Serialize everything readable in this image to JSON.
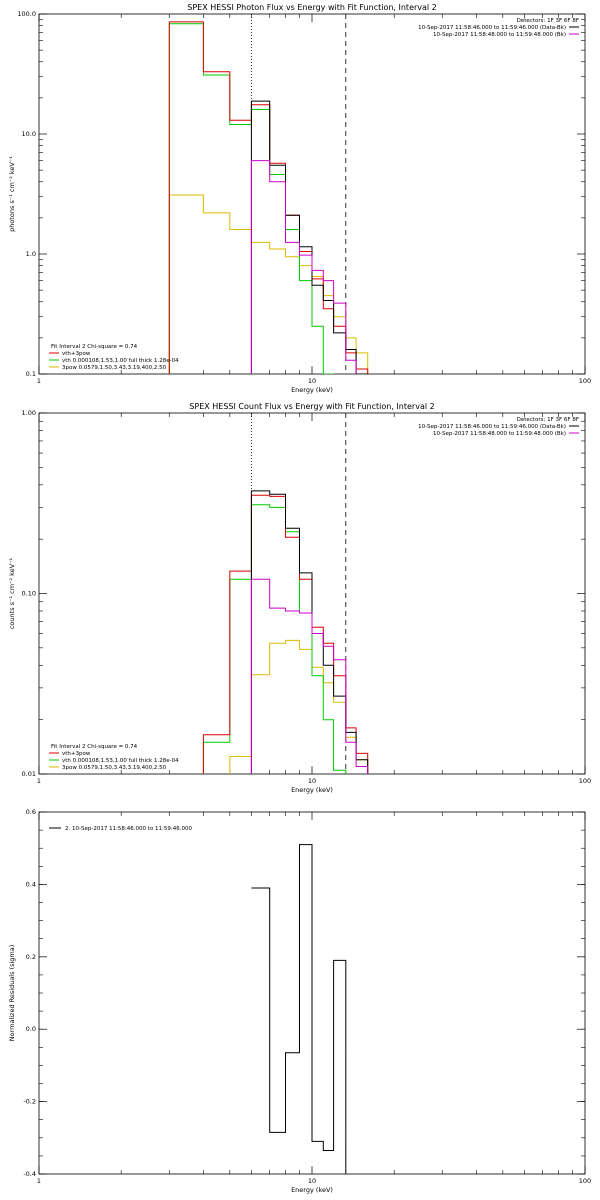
{
  "colors": {
    "vth_3pow": "#dd0000",
    "vth": "#00cc00",
    "three_pow": "#ddbb00",
    "data": "#000000",
    "bk": "#cc00cc"
  },
  "chart_data": [
    {
      "type": "line",
      "title": "SPEX HESSI Photon Flux vs Energy with Fit Function, Interval 2",
      "xlabel": "Energy (keV)",
      "ylabel": "photons s⁻¹ cm⁻² keV⁻¹",
      "xscale": "log",
      "yscale": "log",
      "xlim": [
        1,
        100
      ],
      "ylim": [
        0.1,
        100
      ],
      "xticks": [
        {
          "v": 1,
          "label": "1"
        },
        {
          "v": 10,
          "label": "10"
        },
        {
          "v": 100,
          "label": "100"
        }
      ],
      "yticks": [
        {
          "v": 0.1,
          "label": "0.1"
        },
        {
          "v": 1,
          "label": "1.0"
        },
        {
          "v": 10,
          "label": "10.0"
        },
        {
          "v": 100,
          "label": "100.0"
        }
      ],
      "vlines": [
        {
          "x": 6.0,
          "style": "dotted"
        },
        {
          "x": 13.3,
          "style": "dashed"
        }
      ],
      "legend_top": [
        "Detectors: 1F 3F 6F 8F",
        "10-Sep-2017 11:58:46.000 to 11:59:46.000 (Data-Bk)",
        "10-Sep-2017 11:58:48.000 to 11:59:48.000 (Bk)"
      ],
      "legend_top_keys": [
        "",
        "data",
        "bk"
      ],
      "legend_bottom": [
        "Fit Interval 2   Chi-square = 0.74",
        "vth+3pow",
        "vth 0.000108,1.53,1.00  full thick 1.28e-04",
        "3pow 0.0579,1.50,3.43,3.19,400,2.50"
      ],
      "legend_bottom_keys": [
        "",
        "vth_3pow",
        "vth",
        "three_pow"
      ],
      "x_edges": [
        3.0,
        4.0,
        5.0,
        6.0,
        7.0,
        8.0,
        9.0,
        10.0,
        11.0,
        12.0,
        13.3,
        14.5,
        16.0
      ],
      "series": [
        {
          "key": "three_pow",
          "values": [
            3.1,
            2.2,
            1.6,
            1.25,
            1.1,
            0.95,
            0.8,
            0.65,
            0.45,
            0.3,
            0.2,
            0.15
          ]
        },
        {
          "key": "vth",
          "values": [
            83,
            31,
            12,
            16,
            4.6,
            1.6,
            0.6,
            0.25,
            0.1,
            null,
            null,
            null
          ]
        },
        {
          "key": "vth_3pow",
          "values": [
            86,
            33,
            13,
            17.5,
            5.7,
            2.1,
            1.05,
            0.62,
            0.35,
            0.25,
            0.15,
            0.11
          ]
        },
        {
          "key": "data",
          "values": [
            null,
            null,
            null,
            18.8,
            5.5,
            2.1,
            1.15,
            0.55,
            0.41,
            0.22,
            0.16,
            0.1
          ]
        },
        {
          "key": "bk",
          "values": [
            null,
            null,
            null,
            6.0,
            4.0,
            1.25,
            0.98,
            0.73,
            0.6,
            0.39,
            0.13,
            0.09
          ]
        }
      ]
    },
    {
      "type": "line",
      "title": "SPEX HESSI Count Flux vs Energy with Fit Function, Interval 2",
      "xlabel": "Energy (keV)",
      "ylabel": "counts s⁻¹ cm⁻² keV⁻¹",
      "xscale": "log",
      "yscale": "log",
      "xlim": [
        1,
        100
      ],
      "ylim": [
        0.01,
        1
      ],
      "xticks": [
        {
          "v": 1,
          "label": "1"
        },
        {
          "v": 10,
          "label": "10"
        },
        {
          "v": 100,
          "label": "100"
        }
      ],
      "yticks": [
        {
          "v": 0.01,
          "label": "0.01"
        },
        {
          "v": 0.1,
          "label": "0.10"
        },
        {
          "v": 1,
          "label": "1.00"
        }
      ],
      "vlines": [
        {
          "x": 6.0,
          "style": "dotted"
        },
        {
          "x": 13.3,
          "style": "dashed"
        }
      ],
      "legend_top": [
        "Detectors: 1F 3F 6F 8F",
        "10-Sep-2017 11:58:46.000 to 11:59:46.000 (Data-Bk)",
        "10-Sep-2017 11:58:48.000 to 11:59:48.000 (Bk)"
      ],
      "legend_top_keys": [
        "",
        "data",
        "bk"
      ],
      "legend_bottom": [
        "Fit Interval 2   Chi-square = 0.74",
        "vth+3pow",
        "vth 0.000108,1.53,1.00  full thick 1.28e-04",
        "3pow 0.0579,1.50,3.43,3.19,400,2.50"
      ],
      "legend_bottom_keys": [
        "",
        "vth_3pow",
        "vth",
        "three_pow"
      ],
      "x_edges": [
        4.0,
        5.0,
        6.0,
        7.0,
        8.0,
        9.0,
        10.0,
        11.0,
        12.0,
        13.3,
        14.5,
        16.0
      ],
      "series": [
        {
          "key": "three_pow",
          "values": [
            null,
            0.0125,
            0.0355,
            0.053,
            0.055,
            0.049,
            0.039,
            0.032,
            0.025,
            0.016,
            0.012
          ]
        },
        {
          "key": "vth",
          "values": [
            0.015,
            0.12,
            0.31,
            0.3,
            0.22,
            0.078,
            0.035,
            0.02,
            0.0105,
            null,
            null
          ]
        },
        {
          "key": "vth_3pow",
          "values": [
            0.0165,
            0.133,
            0.35,
            0.345,
            0.205,
            0.12,
            0.065,
            0.053,
            0.035,
            0.018,
            0.013
          ]
        },
        {
          "key": "data",
          "values": [
            null,
            null,
            0.37,
            0.355,
            0.23,
            0.13,
            0.06,
            0.04,
            0.027,
            0.017,
            0.012
          ]
        },
        {
          "key": "bk",
          "values": [
            null,
            null,
            0.12,
            0.083,
            0.08,
            0.078,
            0.06,
            0.051,
            0.043,
            0.015,
            0.011
          ]
        }
      ]
    },
    {
      "type": "line",
      "title": "",
      "xlabel": "Energy (keV)",
      "ylabel": "Normalized Residuals (sigma)",
      "xscale": "log",
      "yscale": "linear",
      "xlim": [
        1,
        100
      ],
      "ylim": [
        -0.4,
        0.6
      ],
      "xticks": [
        {
          "v": 1,
          "label": "1"
        },
        {
          "v": 10,
          "label": "10"
        },
        {
          "v": 100,
          "label": "100"
        }
      ],
      "yticks": [
        {
          "v": -0.4,
          "label": "-0.4"
        },
        {
          "v": -0.2,
          "label": "-0.2"
        },
        {
          "v": 0,
          "label": "0.0"
        },
        {
          "v": 0.2,
          "label": "0.2"
        },
        {
          "v": 0.4,
          "label": "0.4"
        },
        {
          "v": 0.6,
          "label": "0.6"
        }
      ],
      "vlines": [],
      "legend_top": [
        "2. 10-Sep-2017 11:58:46.000 to 11:59:46.000"
      ],
      "legend_top_keys": [
        "data"
      ],
      "legend_bottom": [],
      "legend_bottom_keys": [],
      "x_edges": [
        6.0,
        7.0,
        8.0,
        9.0,
        10.0,
        11.0,
        12.0,
        13.3
      ],
      "series": [
        {
          "key": "data",
          "values": [
            0.39,
            -0.285,
            -0.065,
            0.51,
            -0.31,
            -0.335,
            0.19
          ]
        }
      ]
    }
  ]
}
